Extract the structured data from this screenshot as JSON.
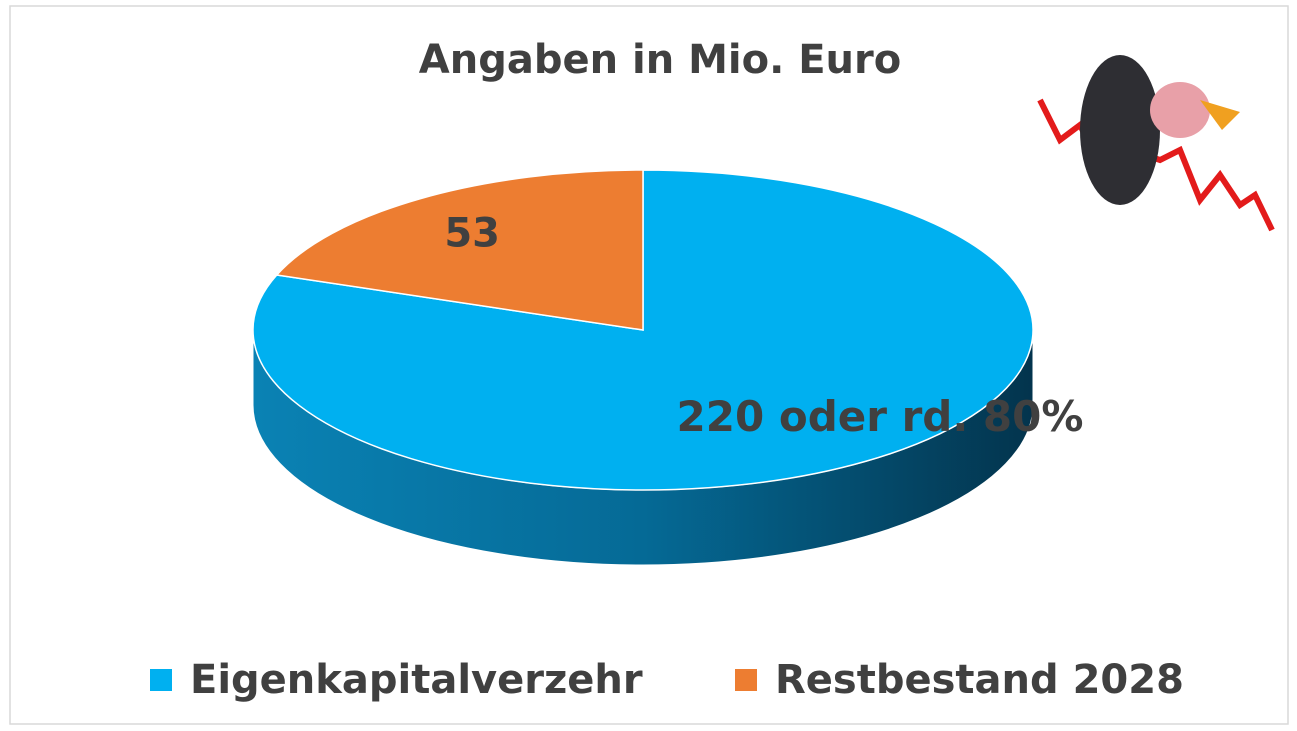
{
  "chart_data": {
    "type": "pie",
    "title": "Angaben in Mio. Euro",
    "categories": [
      "Eigenkapitalverzehr",
      "Restbestand 2028"
    ],
    "values": [
      220,
      53
    ],
    "value_labels": [
      "220 oder rd. 80%",
      "53"
    ],
    "colors": [
      "#00b0f0",
      "#ed7d31"
    ],
    "legend": "bottom"
  }
}
